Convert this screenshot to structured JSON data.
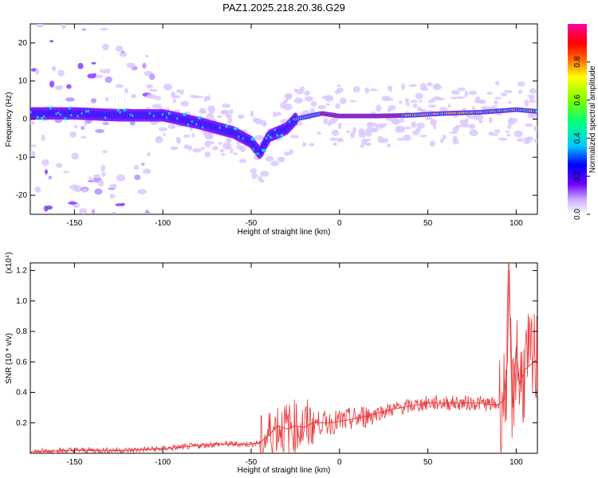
{
  "title": "PAZ1.2025.218.20.36.G29",
  "chart_data": [
    {
      "type": "heatmap",
      "xlabel": "Height of straight line (km)",
      "ylabel": "Frequency (Hz)",
      "xlim": [
        -175,
        112
      ],
      "ylim": [
        -25,
        25
      ],
      "xticks": [
        -150,
        -100,
        -50,
        0,
        50,
        100
      ],
      "yticks": [
        -20,
        -10,
        0,
        10,
        20
      ],
      "colorbar": {
        "label": "Normalized spectral amplitude",
        "range": [
          0,
          1
        ],
        "ticks": [
          "0.0",
          "0.2",
          "0.4",
          "0.6",
          "0.8"
        ]
      },
      "ridge": {
        "x": [
          -175,
          -150,
          -125,
          -100,
          -80,
          -60,
          -50,
          -45,
          -40,
          -35,
          -30,
          -25,
          -20,
          -10,
          0,
          20,
          40,
          60,
          80,
          95,
          100,
          112
        ],
        "frequency": [
          1.5,
          1.5,
          1,
          1,
          -1,
          -3.5,
          -6,
          -9,
          -4.5,
          -3.5,
          -2.5,
          0,
          0.5,
          1.5,
          0.8,
          0.8,
          1,
          1.5,
          1.8,
          2.3,
          2.5,
          2
        ]
      }
    },
    {
      "type": "line",
      "xlabel": "Height of straight line (km)",
      "ylabel": "SNR (10 * v/v)",
      "y_multiplier": "(x10⁴)",
      "xlim": [
        -175,
        112
      ],
      "ylim": [
        0,
        1.25
      ],
      "xticks": [
        -150,
        -100,
        -50,
        0,
        50,
        100
      ],
      "yticks": [
        "0.2",
        "0.4",
        "0.6",
        "0.8",
        "1.0",
        "1.2"
      ],
      "color": "#e8383a",
      "series": [
        {
          "x": [
            -175,
            -150,
            -120,
            -100,
            -90,
            -80,
            -70,
            -60,
            -50,
            -45,
            -42,
            -40,
            -35,
            -30,
            -25,
            -20,
            -15,
            -10,
            -5,
            0,
            10,
            20,
            30,
            40,
            50,
            60,
            70,
            80,
            85,
            90,
            93,
            95,
            96,
            97,
            98,
            100,
            102,
            105,
            108,
            112
          ],
          "values": [
            0.01,
            0.02,
            0.02,
            0.03,
            0.04,
            0.05,
            0.06,
            0.06,
            0.06,
            0.07,
            0.1,
            0.12,
            0.18,
            0.16,
            0.18,
            0.17,
            0.2,
            0.2,
            0.2,
            0.21,
            0.23,
            0.26,
            0.29,
            0.31,
            0.33,
            0.33,
            0.33,
            0.33,
            0.32,
            0.32,
            0.35,
            0.6,
            1.2,
            0.6,
            0.3,
            0.7,
            0.45,
            0.55,
            0.58,
            0.62
          ]
        }
      ]
    }
  ]
}
